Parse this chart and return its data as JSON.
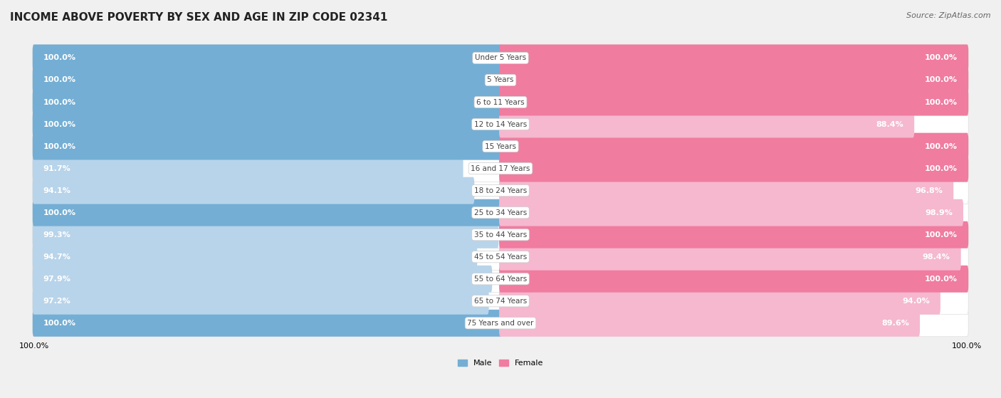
{
  "title": "INCOME ABOVE POVERTY BY SEX AND AGE IN ZIP CODE 02341",
  "source": "Source: ZipAtlas.com",
  "categories": [
    "Under 5 Years",
    "5 Years",
    "6 to 11 Years",
    "12 to 14 Years",
    "15 Years",
    "16 and 17 Years",
    "18 to 24 Years",
    "25 to 34 Years",
    "35 to 44 Years",
    "45 to 54 Years",
    "55 to 64 Years",
    "65 to 74 Years",
    "75 Years and over"
  ],
  "male": [
    100.0,
    100.0,
    100.0,
    100.0,
    100.0,
    91.7,
    94.1,
    100.0,
    99.3,
    94.7,
    97.9,
    97.2,
    100.0
  ],
  "female": [
    100.0,
    100.0,
    100.0,
    88.4,
    100.0,
    100.0,
    96.8,
    98.9,
    100.0,
    98.4,
    100.0,
    94.0,
    89.6
  ],
  "male_color": "#74aed4",
  "female_color": "#f07ca0",
  "male_color_light": "#b8d4ea",
  "female_color_light": "#f5b8cf",
  "male_label": "Male",
  "female_label": "Female",
  "background_color": "#f0f0f0",
  "bar_bg_color": "#e8e8e8",
  "max_val": 100.0,
  "title_fontsize": 11,
  "label_fontsize": 8.0,
  "cat_fontsize": 7.5,
  "source_fontsize": 8.0
}
